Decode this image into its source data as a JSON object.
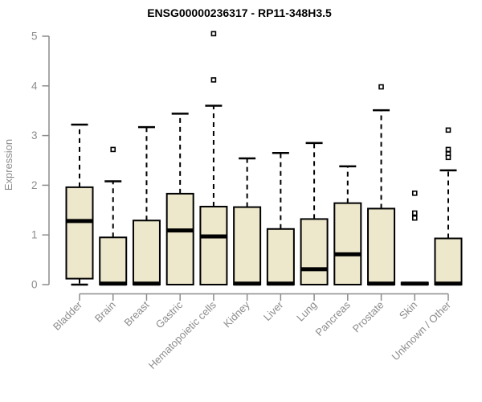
{
  "chart_data": {
    "type": "boxplot",
    "title": "ENSG00000236317 - RP11-348H3.5",
    "ylabel": "Expression",
    "xlabel": "",
    "ylim": [
      0,
      5
    ],
    "yticks": [
      0,
      1,
      2,
      3,
      4,
      5
    ],
    "grid": false,
    "legend": "none",
    "axis_color": "#8C8C8C",
    "box_fill_color": "#EDE7CB",
    "box_line_color": "#000000",
    "categories": [
      "Bladder",
      "Brain",
      "Breast",
      "Gastric",
      "Hematopoietic cells",
      "Kidney",
      "Liver",
      "Lung",
      "Pancreas",
      "Prostate",
      "Skin",
      "Unknown / Other"
    ],
    "series": [
      {
        "category": "Bladder",
        "whisker_low": 0,
        "q1": 0.12,
        "median": 1.28,
        "q3": 1.96,
        "whisker_high": 3.22,
        "outliers": []
      },
      {
        "category": "Brain",
        "whisker_low": 0,
        "q1": 0,
        "median": 0.02,
        "q3": 0.95,
        "whisker_high": 2.08,
        "outliers": [
          2.72
        ]
      },
      {
        "category": "Breast",
        "whisker_low": 0,
        "q1": 0,
        "median": 0.02,
        "q3": 1.29,
        "whisker_high": 3.17,
        "outliers": []
      },
      {
        "category": "Gastric",
        "whisker_low": 0,
        "q1": 0,
        "median": 1.09,
        "q3": 1.83,
        "whisker_high": 3.44,
        "outliers": []
      },
      {
        "category": "Hematopoietic cells",
        "whisker_low": 0,
        "q1": 0,
        "median": 0.97,
        "q3": 1.57,
        "whisker_high": 3.6,
        "outliers": [
          4.12,
          5.05
        ]
      },
      {
        "category": "Kidney",
        "whisker_low": 0,
        "q1": 0,
        "median": 0.02,
        "q3": 1.56,
        "whisker_high": 2.54,
        "outliers": []
      },
      {
        "category": "Liver",
        "whisker_low": 0,
        "q1": 0,
        "median": 0.02,
        "q3": 1.12,
        "whisker_high": 2.65,
        "outliers": []
      },
      {
        "category": "Lung",
        "whisker_low": 0,
        "q1": 0,
        "median": 0.31,
        "q3": 1.32,
        "whisker_high": 2.85,
        "outliers": []
      },
      {
        "category": "Pancreas",
        "whisker_low": 0,
        "q1": 0,
        "median": 0.61,
        "q3": 1.64,
        "whisker_high": 2.38,
        "outliers": []
      },
      {
        "category": "Prostate",
        "whisker_low": 0,
        "q1": 0,
        "median": 0.02,
        "q3": 1.53,
        "whisker_high": 3.51,
        "outliers": [
          3.98
        ]
      },
      {
        "category": "Skin",
        "whisker_low": 0,
        "q1": 0,
        "median": 0.02,
        "q3": 0.04,
        "whisker_high": 0.04,
        "outliers": [
          1.84,
          1.44,
          1.34
        ]
      },
      {
        "category": "Unknown / Other",
        "whisker_low": 0,
        "q1": 0,
        "median": 0.02,
        "q3": 0.93,
        "whisker_high": 2.3,
        "outliers": [
          3.11,
          2.72,
          2.63,
          2.56
        ]
      }
    ]
  }
}
